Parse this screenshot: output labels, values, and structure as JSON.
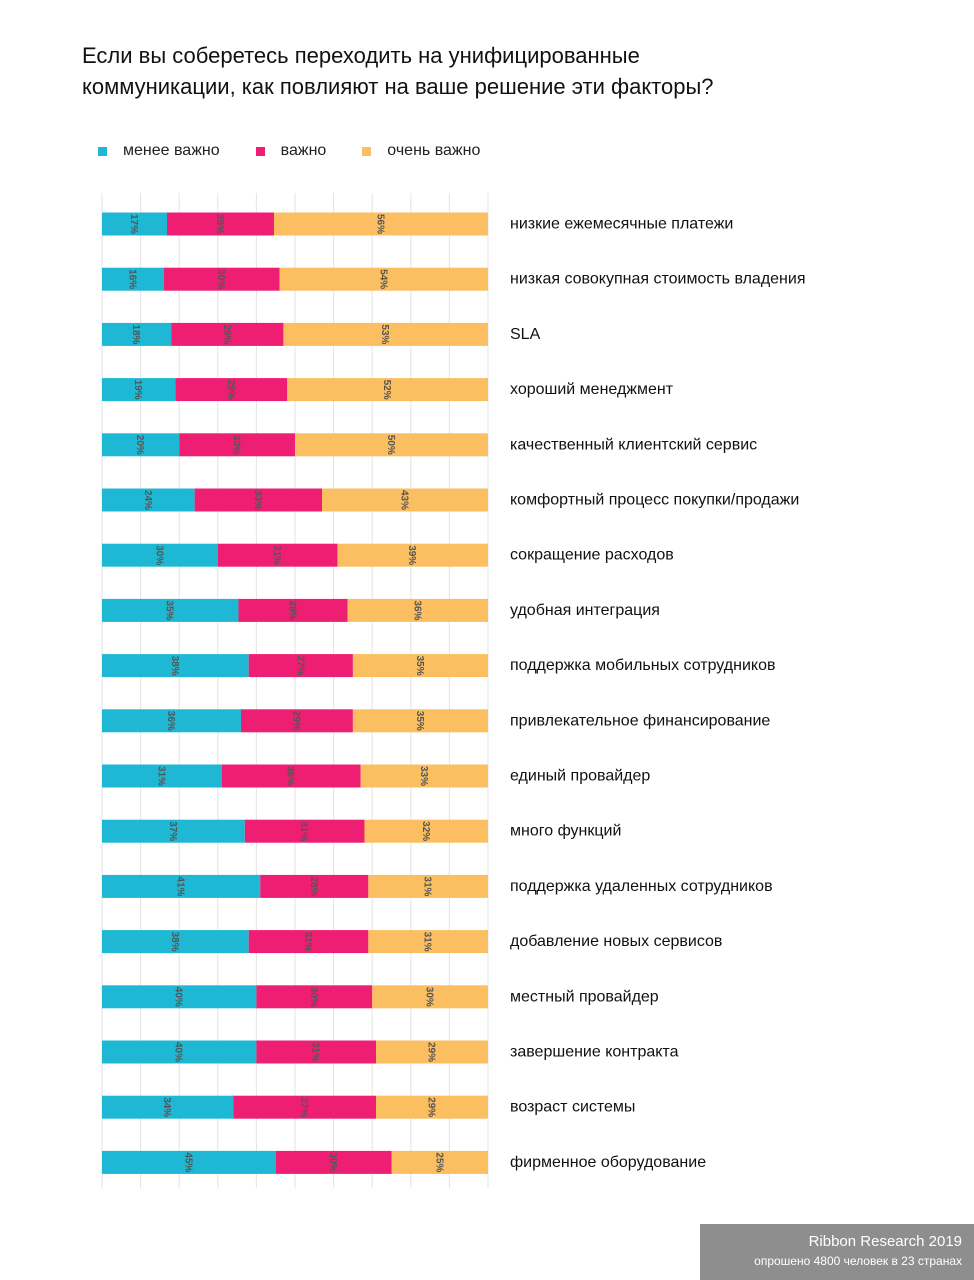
{
  "title_lines": [
    "Если вы соберетесь переходить на унифицированные",
    "коммуникации, как повлияют на ваше решение эти факторы?"
  ],
  "footer": {
    "brand": "Ribbon Research 2019",
    "note": "опрошено 4800 человек в 23 странах"
  },
  "colors": {
    "less_important": "#1fb8d4",
    "important": "#ee1f73",
    "very_important": "#fbbf61",
    "grid": "#e3e3e3",
    "value_label": "#555555"
  },
  "chart_data": {
    "type": "bar",
    "orientation": "horizontal",
    "stacked": true,
    "grid": true,
    "legend_position": "top-left",
    "value_label_rotation": "vertical",
    "categories": [
      "низкие ежемесячные платежи",
      "низкая совокупная стоимость владения",
      "SLA",
      "хороший менеджмент",
      "качественный клиентский сервис",
      "комфортный процесс покупки/продажи",
      "сокращение расходов",
      "удобная интеграция",
      "поддержка мобильных сотрудников",
      "привлекательное финансирование",
      "единый провайдер",
      "много функций",
      "поддержка удаленных сотрудников",
      "добавление новых сервисов",
      "местный провайдер",
      "завершение контракта",
      "возраст системы",
      "фирменное оборудование"
    ],
    "series": [
      {
        "name": "менее важно",
        "color": "#1fb8d4",
        "values": [
          17,
          16,
          18,
          19,
          20,
          24,
          30,
          35,
          38,
          36,
          31,
          37,
          41,
          38,
          40,
          40,
          34,
          45
        ]
      },
      {
        "name": "важно",
        "color": "#ee1f73",
        "values": [
          28,
          30,
          29,
          29,
          30,
          33,
          31,
          28,
          27,
          29,
          36,
          31,
          28,
          31,
          30,
          31,
          37,
          30
        ]
      },
      {
        "name": "очень важно",
        "color": "#fbbf61",
        "values": [
          56,
          54,
          53,
          52,
          50,
          43,
          39,
          36,
          35,
          35,
          33,
          32,
          31,
          31,
          30,
          29,
          29,
          25
        ]
      }
    ],
    "value_suffix": "%"
  }
}
